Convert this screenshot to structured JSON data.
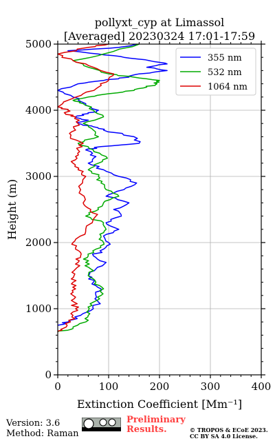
{
  "footer": {
    "version": "Version: 3.6",
    "method": "Method: Raman",
    "preliminary": "Preliminary Results.",
    "copyright": "© TROPOS & ECoE 2023. CC BY SA 4.0 License.",
    "license_badge_text": "BY SA"
  },
  "chart_data": {
    "type": "line",
    "title": [
      "pollyxt_cyp at Limassol",
      "[Averaged] 20230324 17:01-17:59"
    ],
    "xlabel": "Extinction Coefficient [Mm⁻¹]",
    "ylabel": "Height (m)",
    "xlim": [
      0,
      400
    ],
    "ylim": [
      0,
      5000
    ],
    "xticks": [
      0,
      100,
      200,
      300,
      400
    ],
    "yticks": [
      0,
      1000,
      2000,
      3000,
      4000,
      5000
    ],
    "grid": true,
    "legend_position": "top-right",
    "series": [
      {
        "name": "355 nm",
        "color": "#0000ff",
        "x": [
          0,
          20,
          45,
          70,
          80,
          75,
          85,
          70,
          60,
          75,
          95,
          70,
          90,
          100,
          90,
          120,
          95,
          125,
          110,
          140,
          95,
          130,
          155,
          120,
          90,
          60,
          75,
          55,
          85,
          160,
          150,
          90,
          70,
          40,
          60,
          35,
          60,
          80,
          55,
          30,
          0,
          40,
          90,
          140,
          160,
          215,
          175,
          215,
          180,
          130,
          80,
          20,
          120,
          160
        ],
        "y": [
          750,
          800,
          900,
          1000,
          1100,
          1200,
          1300,
          1400,
          1500,
          1600,
          1700,
          1800,
          1900,
          2000,
          2100,
          2200,
          2300,
          2400,
          2500,
          2600,
          2700,
          2800,
          2900,
          3000,
          3100,
          3200,
          3300,
          3400,
          3450,
          3500,
          3600,
          3700,
          3750,
          3800,
          3850,
          3900,
          3950,
          4000,
          4100,
          4200,
          4300,
          4400,
          4450,
          4500,
          4550,
          4600,
          4650,
          4700,
          4750,
          4800,
          4850,
          4900,
          4950,
          5000
        ]
      },
      {
        "name": "532 nm",
        "color": "#00aa00",
        "x": [
          0,
          30,
          55,
          60,
          62,
          70,
          85,
          90,
          75,
          60,
          65,
          55,
          60,
          75,
          90,
          85,
          95,
          90,
          55,
          80,
          90,
          120,
          95,
          85,
          80,
          60,
          80,
          95,
          70,
          40,
          80,
          70,
          50,
          90,
          70,
          50,
          30,
          60,
          100,
          150,
          175,
          195,
          200,
          150,
          100,
          60,
          30,
          90,
          160
        ],
        "y": [
          650,
          700,
          800,
          900,
          1000,
          1100,
          1200,
          1300,
          1400,
          1500,
          1600,
          1700,
          1800,
          1900,
          2000,
          2100,
          2200,
          2300,
          2400,
          2500,
          2600,
          2700,
          2800,
          2900,
          3000,
          3100,
          3200,
          3300,
          3400,
          3500,
          3600,
          3700,
          3800,
          3900,
          4000,
          4100,
          4150,
          4200,
          4250,
          4300,
          4350,
          4400,
          4450,
          4500,
          4550,
          4650,
          4750,
          4850,
          5000
        ]
      },
      {
        "name": "1064 nm",
        "color": "#dd0000",
        "x": [
          0,
          10,
          25,
          30,
          35,
          32,
          30,
          35,
          30,
          32,
          35,
          40,
          45,
          35,
          30,
          45,
          55,
          75,
          65,
          50,
          45,
          55,
          40,
          30,
          35,
          40,
          50,
          25,
          35,
          40,
          35,
          15,
          20,
          0,
          20,
          50,
          80,
          100,
          110,
          70,
          30,
          0,
          60,
          100
        ],
        "y": [
          650,
          700,
          800,
          900,
          1000,
          1100,
          1200,
          1300,
          1400,
          1500,
          1600,
          1700,
          1800,
          1900,
          2000,
          2100,
          2200,
          2400,
          2500,
          2600,
          2800,
          3000,
          3100,
          3200,
          3300,
          3400,
          3500,
          3600,
          3700,
          3800,
          3900,
          3950,
          4000,
          4050,
          4150,
          4250,
          4350,
          4450,
          4550,
          4650,
          4750,
          4850,
          4950,
          5000
        ]
      }
    ]
  }
}
